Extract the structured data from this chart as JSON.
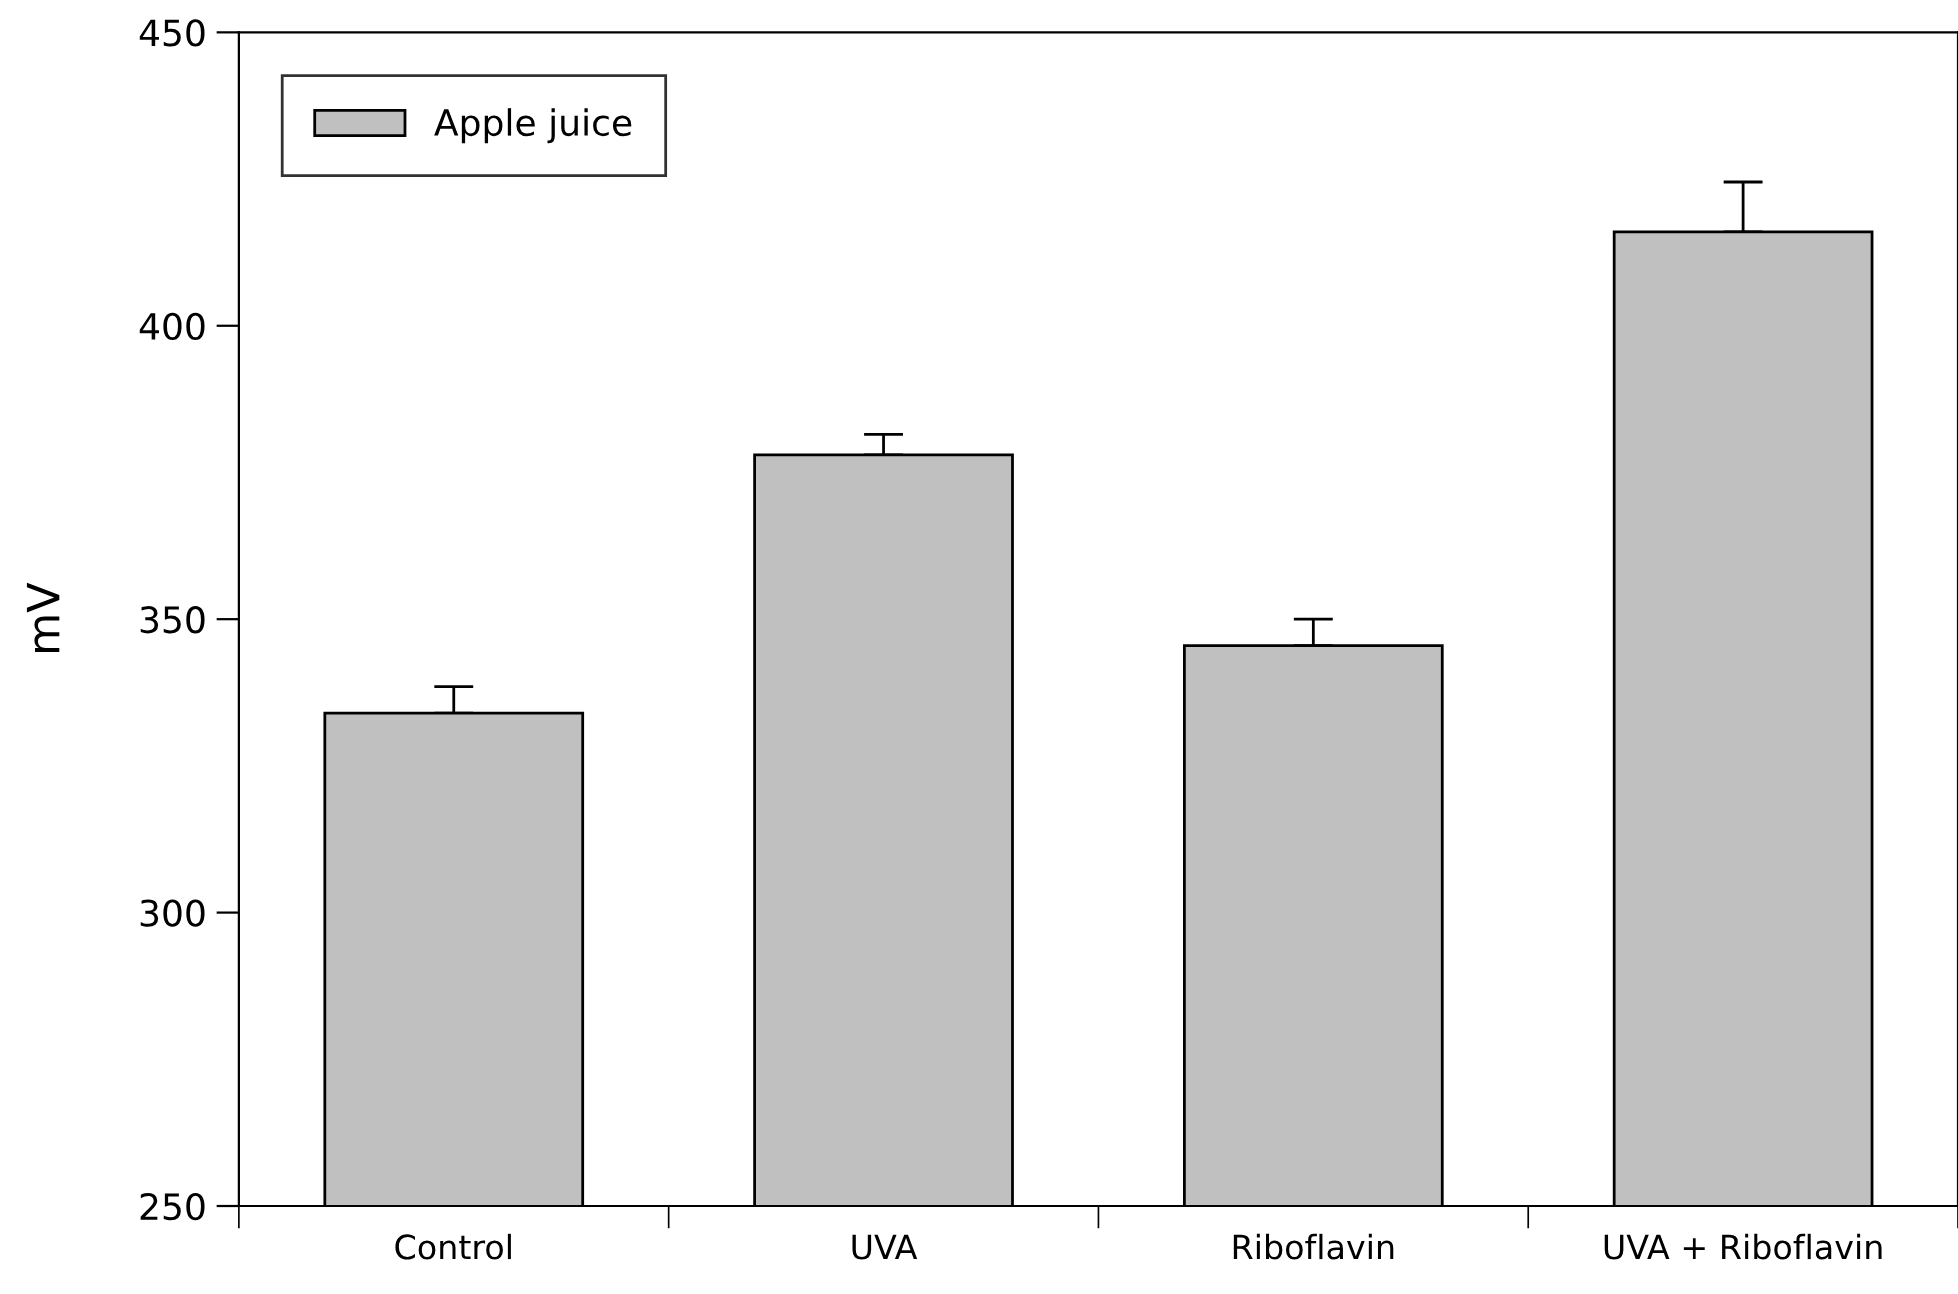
{
  "chart_data": {
    "type": "bar",
    "ylabel": "mV",
    "categories": [
      "Control",
      "UVA",
      "Riboflavin",
      "UVA + Riboflavin"
    ],
    "series": [
      {
        "name": "Apple juice",
        "color": "#c0c0c0",
        "values": [
          334,
          378,
          345.5,
          416
        ],
        "errors": [
          [
            334,
            338.5
          ],
          [
            378,
            381.5
          ],
          [
            345.5,
            350
          ],
          [
            416,
            424.5
          ]
        ]
      }
    ],
    "ylim": [
      250,
      450
    ],
    "yticks": [
      250,
      300,
      350,
      400,
      450
    ],
    "grid": false,
    "legend": "top left"
  }
}
